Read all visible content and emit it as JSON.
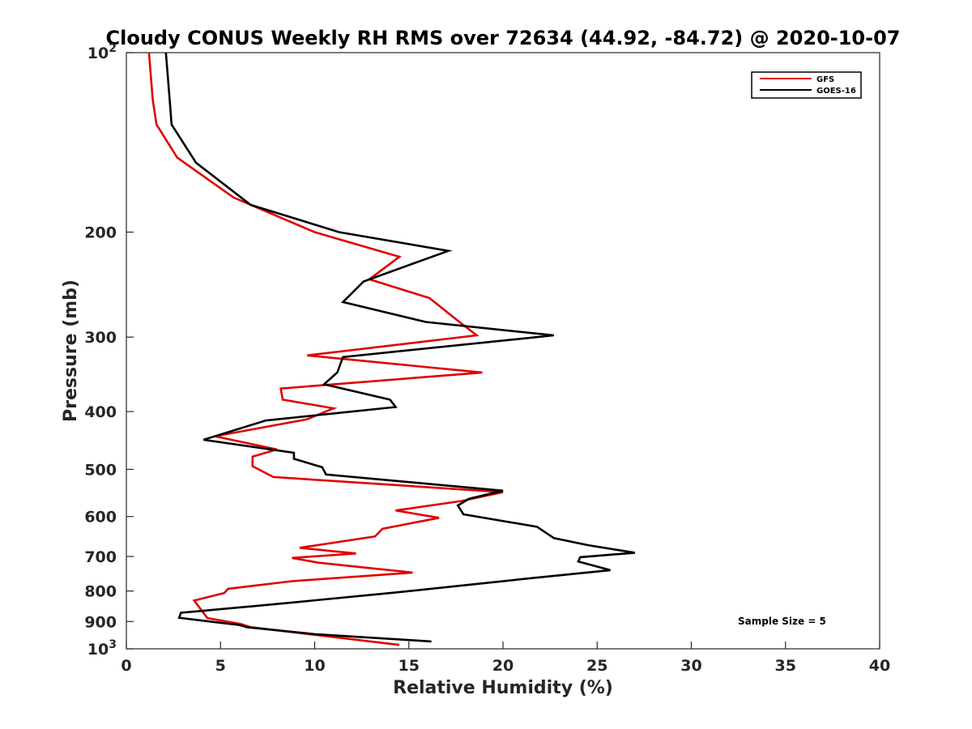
{
  "chart_data": {
    "type": "line",
    "title": "Cloudy CONUS Weekly RH RMS over 72634 (44.92, -84.72) @ 2020-10-07",
    "xlabel": "Relative Humidity (%)",
    "ylabel": "Pressure (mb)",
    "xlim": [
      0,
      40
    ],
    "ylim": [
      100,
      1000
    ],
    "y_scale": "log",
    "y_reversed": true,
    "grid": false,
    "legend_position": "top-right",
    "x_ticks": [
      {
        "value": 0,
        "label": "0"
      },
      {
        "value": 5,
        "label": "5"
      },
      {
        "value": 10,
        "label": "10"
      },
      {
        "value": 15,
        "label": "15"
      },
      {
        "value": 20,
        "label": "20"
      },
      {
        "value": 25,
        "label": "25"
      },
      {
        "value": 30,
        "label": "30"
      },
      {
        "value": 35,
        "label": "35"
      },
      {
        "value": 40,
        "label": "40"
      }
    ],
    "y_ticks": [
      {
        "value": 100,
        "label": "10",
        "exp": "2"
      },
      {
        "value": 200,
        "label": "200"
      },
      {
        "value": 300,
        "label": "300"
      },
      {
        "value": 400,
        "label": "400"
      },
      {
        "value": 500,
        "label": "500"
      },
      {
        "value": 600,
        "label": "600"
      },
      {
        "value": 700,
        "label": "700"
      },
      {
        "value": 800,
        "label": "800"
      },
      {
        "value": 900,
        "label": "900"
      },
      {
        "value": 1000,
        "label": "10",
        "exp": "3"
      }
    ],
    "series": [
      {
        "name": "GFS",
        "color": "#e00000",
        "points": [
          [
            1.2,
            100
          ],
          [
            1.4,
            120
          ],
          [
            1.6,
            132
          ],
          [
            2.7,
            150
          ],
          [
            5.7,
            175
          ],
          [
            10.0,
            200
          ],
          [
            14.5,
            220
          ],
          [
            12.9,
            240
          ],
          [
            16.1,
            258
          ],
          [
            17.5,
            280
          ],
          [
            18.6,
            298
          ],
          [
            9.6,
            322
          ],
          [
            18.9,
            344
          ],
          [
            8.2,
            366
          ],
          [
            8.3,
            382
          ],
          [
            11.0,
            395
          ],
          [
            9.6,
            412
          ],
          [
            4.7,
            440
          ],
          [
            8.0,
            463
          ],
          [
            6.7,
            476
          ],
          [
            6.7,
            494
          ],
          [
            7.8,
            515
          ],
          [
            20.0,
            546
          ],
          [
            17.8,
            565
          ],
          [
            14.3,
            586
          ],
          [
            16.6,
            603
          ],
          [
            13.6,
            629
          ],
          [
            13.2,
            648
          ],
          [
            9.2,
            677
          ],
          [
            12.2,
            692
          ],
          [
            8.8,
            704
          ],
          [
            10.2,
            717
          ],
          [
            15.2,
            745
          ],
          [
            8.8,
            770
          ],
          [
            5.4,
            793
          ],
          [
            5.2,
            806
          ],
          [
            3.6,
            830
          ],
          [
            4.3,
            888
          ],
          [
            6.1,
            909
          ],
          [
            6.6,
            920
          ],
          [
            14.5,
            985
          ]
        ]
      },
      {
        "name": "GOES-16",
        "color": "#000000",
        "points": [
          [
            2.1,
            100
          ],
          [
            2.3,
            120
          ],
          [
            2.4,
            132
          ],
          [
            3.7,
            153
          ],
          [
            6.6,
            180
          ],
          [
            11.3,
            200
          ],
          [
            17.1,
            215
          ],
          [
            12.6,
            242
          ],
          [
            11.5,
            262
          ],
          [
            15.9,
            283
          ],
          [
            22.7,
            298
          ],
          [
            11.5,
            324
          ],
          [
            11.2,
            344
          ],
          [
            10.5,
            360
          ],
          [
            14.0,
            382
          ],
          [
            14.3,
            393
          ],
          [
            7.4,
            414
          ],
          [
            4.1,
            446
          ],
          [
            8.9,
            469
          ],
          [
            8.9,
            480
          ],
          [
            10.4,
            496
          ],
          [
            10.6,
            510
          ],
          [
            20.0,
            543
          ],
          [
            18.2,
            560
          ],
          [
            17.6,
            575
          ],
          [
            17.9,
            595
          ],
          [
            21.8,
            624
          ],
          [
            22.7,
            652
          ],
          [
            24.5,
            670
          ],
          [
            27.0,
            690
          ],
          [
            24.1,
            702
          ],
          [
            24.0,
            714
          ],
          [
            25.7,
            738
          ],
          [
            21.7,
            760
          ],
          [
            14.2,
            805
          ],
          [
            9.0,
            835
          ],
          [
            6.6,
            849
          ],
          [
            2.9,
            870
          ],
          [
            2.8,
            887
          ],
          [
            6.0,
            912
          ],
          [
            6.4,
            920
          ],
          [
            10.0,
            945
          ],
          [
            16.2,
            972
          ]
        ]
      }
    ],
    "annotation": "Sample Size = 5"
  }
}
